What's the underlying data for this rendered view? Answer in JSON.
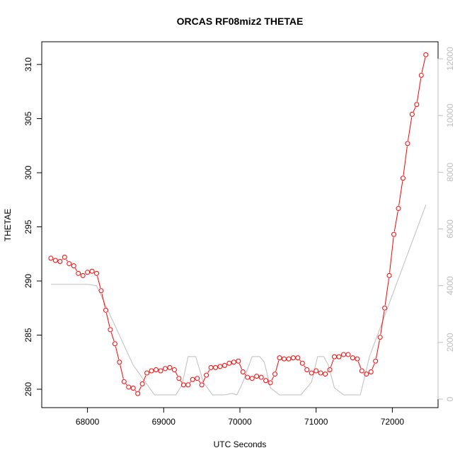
{
  "chart_data": {
    "type": "line",
    "title": "ORCAS RF08miz2 THETAE",
    "xlabel": "UTC Seconds",
    "ylabel": "THETAE",
    "xlim": [
      67400,
      72600
    ],
    "ylim": [
      278.3,
      312.1
    ],
    "y2lim": [
      -300,
      12600
    ],
    "x_ticks": [
      68000,
      69000,
      70000,
      71000,
      72000
    ],
    "y_ticks": [
      280,
      285,
      290,
      295,
      300,
      305,
      310
    ],
    "y2_ticks": [
      0,
      2000,
      4000,
      6000,
      8000,
      10000,
      12000
    ],
    "colors": {
      "primary": "#ff0000",
      "secondary": "#bebebe",
      "axis": "#000000"
    },
    "series": [
      {
        "axis": "left",
        "style": "line-points",
        "x": [
          67520,
          67580,
          67640,
          67700,
          67760,
          67820,
          67880,
          67940,
          68000,
          68060,
          68120,
          68180,
          68240,
          68300,
          68360,
          68420,
          68480,
          68540,
          68600,
          68660,
          68720,
          68780,
          68840,
          68900,
          68960,
          69020,
          69080,
          69140,
          69200,
          69260,
          69320,
          69380,
          69440,
          69500,
          69560,
          69620,
          69680,
          69740,
          69800,
          69860,
          69920,
          69980,
          70040,
          70100,
          70160,
          70220,
          70280,
          70340,
          70400,
          70460,
          70520,
          70580,
          70640,
          70700,
          70760,
          70820,
          70880,
          70940,
          71000,
          71060,
          71120,
          71180,
          71240,
          71300,
          71360,
          71420,
          71480,
          71540,
          71600,
          71660,
          71720,
          71780,
          71840,
          71900,
          71960,
          72020,
          72080,
          72140,
          72200,
          72260,
          72320,
          72380,
          72440
        ],
        "y": [
          292.1,
          291.9,
          291.8,
          292.2,
          291.6,
          291.4,
          290.7,
          290.5,
          290.8,
          290.9,
          290.7,
          289.1,
          287.3,
          285.5,
          284.2,
          282.5,
          280.7,
          280.2,
          280.1,
          279.6,
          280.5,
          281.5,
          281.7,
          281.8,
          281.7,
          281.9,
          282.0,
          281.8,
          281.0,
          280.4,
          280.4,
          280.9,
          281.0,
          280.4,
          281.3,
          282.0,
          282.0,
          282.1,
          282.2,
          282.4,
          282.5,
          282.6,
          281.6,
          281.1,
          281.0,
          281.2,
          281.1,
          280.8,
          280.6,
          281.4,
          282.9,
          282.8,
          282.8,
          282.9,
          282.9,
          282.4,
          281.8,
          281.5,
          281.7,
          281.5,
          281.4,
          281.8,
          283.0,
          283.0,
          283.2,
          283.2,
          282.9,
          282.8,
          281.7,
          281.4,
          281.6,
          282.6,
          284.8,
          287.5,
          290.5,
          294.3,
          296.7,
          299.5,
          302.7,
          305.4,
          306.3,
          309.0,
          310.9
        ]
      },
      {
        "axis": "right",
        "style": "line",
        "x": [
          67520,
          68000,
          68120,
          68600,
          68880,
          69160,
          69240,
          69320,
          69420,
          69520,
          69640,
          69800,
          69900,
          69960,
          70040,
          70160,
          70260,
          70320,
          70400,
          70520,
          70640,
          70800,
          70940,
          71020,
          71100,
          71160,
          71240,
          71360,
          71500,
          71580,
          71700,
          72440
        ],
        "y": [
          4050,
          4050,
          4000,
          1200,
          150,
          150,
          500,
          1500,
          1500,
          600,
          150,
          150,
          200,
          150,
          600,
          1500,
          1500,
          1300,
          400,
          150,
          150,
          150,
          600,
          1500,
          1500,
          1200,
          400,
          150,
          150,
          150,
          1500,
          6850
        ]
      }
    ]
  }
}
